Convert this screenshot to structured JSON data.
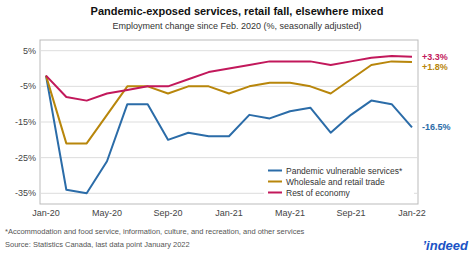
{
  "chart_data": {
    "type": "line",
    "title": "Pandemic-exposed services, retail fall, elsewhere mixed",
    "subtitle": "Employment change since Feb. 2020 (%, seasonally adjusted)",
    "categories": [
      "Jan-20",
      null,
      null,
      "May-20",
      null,
      null,
      "Sep-20",
      null,
      null,
      "Jan-21",
      null,
      null,
      "May-21",
      null,
      null,
      "Sep-21",
      null,
      null,
      "Jan-22"
    ],
    "series": [
      {
        "name": "Pandemic vulnerable services*",
        "color": "#2b6ca8",
        "values": [
          -2,
          -34,
          -35,
          -26,
          -10,
          -10,
          -20,
          -18,
          -19,
          -19,
          -13,
          -14,
          -12,
          -11,
          -18,
          -13,
          -9,
          -10,
          -16.5
        ]
      },
      {
        "name": "Wholesale and retail trade",
        "color": "#b8860b",
        "values": [
          -2,
          -21,
          -21,
          -13,
          -5,
          -5,
          -7,
          -5,
          -5,
          -7,
          -5,
          -4,
          -4,
          -5,
          -7,
          -3,
          1,
          2,
          1.8
        ]
      },
      {
        "name": "Rest of economy",
        "color": "#c2185b",
        "values": [
          -2,
          -8,
          -9,
          -7,
          -6,
          -5,
          -5,
          -3,
          -1,
          0,
          1,
          2,
          2,
          2,
          1,
          2,
          3,
          3.5,
          3.3
        ]
      }
    ],
    "ylim": [
      -38,
      8
    ],
    "yticks": [
      {
        "value": 5,
        "label": "5%"
      },
      {
        "value": -5,
        "label": "-5%"
      },
      {
        "value": -15,
        "label": "-15%"
      },
      {
        "value": -25,
        "label": "-25%"
      },
      {
        "value": -35,
        "label": "-35%"
      }
    ],
    "grid": true,
    "legend": "lower right",
    "annotations": [
      {
        "text": "+3.3%",
        "series": "Rest of economy"
      },
      {
        "text": "+1.8%",
        "series": "Wholesale and retail trade"
      },
      {
        "text": "-16.5%",
        "series": "Pandemic vulnerable services*"
      }
    ],
    "footnotes": [
      "*Accommodation and food service, information, culture, and recreation, and other services",
      "Source: Statistics Canada, last data point January 2022"
    ],
    "logo": "’indeed"
  }
}
